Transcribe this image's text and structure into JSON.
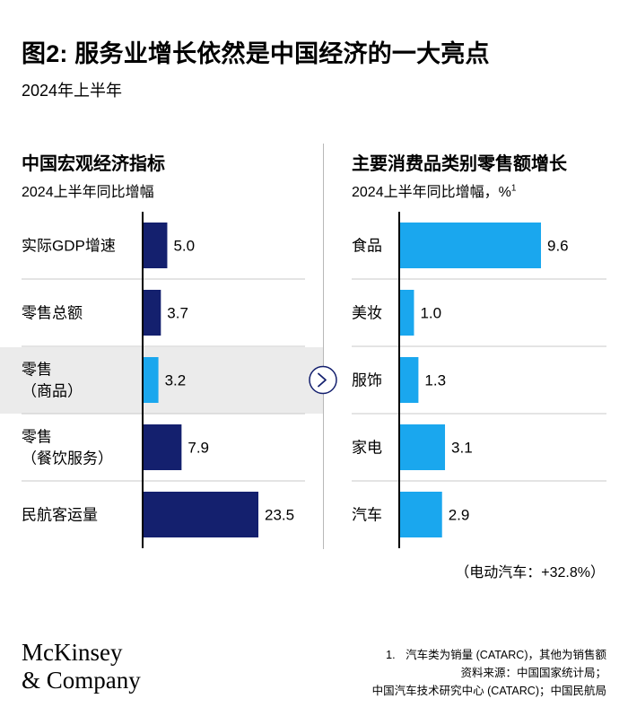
{
  "header": {
    "title": "图2: 服务业增长依然是中国经济的一大亮点",
    "subtitle": "2024年上半年"
  },
  "colors": {
    "navy": "#14206e",
    "light_blue": "#1aa7ee",
    "highlight_bg": "#ebebeb",
    "separator": "#c8c8c8"
  },
  "chart_data": [
    {
      "type": "bar",
      "orientation": "horizontal",
      "title": "中国宏观经济指标",
      "subtitle": "2024上半年同比增幅",
      "categories": [
        "实际GDP增速",
        "零售总额",
        "零售\n（商品）",
        "零售\n（餐饮服务）",
        "民航客运量"
      ],
      "values": [
        5.0,
        3.7,
        3.2,
        7.9,
        23.5
      ],
      "value_labels": [
        "5.0",
        "3.7",
        "3.2",
        "7.9",
        "23.5"
      ],
      "bar_colors": [
        "#14206e",
        "#14206e",
        "#1aa7ee",
        "#14206e",
        "#14206e"
      ],
      "highlighted_category": "零售\n（商品）",
      "xlim": [
        0,
        23.5
      ]
    },
    {
      "type": "bar",
      "orientation": "horizontal",
      "title": "主要消费品类别零售额增长",
      "subtitle": "2024上半年同比增幅，%",
      "subtitle_footnote": "1",
      "categories": [
        "食品",
        "美妆",
        "服饰",
        "家电",
        "汽车"
      ],
      "values": [
        9.6,
        1.0,
        1.3,
        3.1,
        2.9
      ],
      "value_labels": [
        "9.6",
        "1.0",
        "1.3",
        "3.1",
        "2.9"
      ],
      "bar_colors": [
        "#1aa7ee",
        "#1aa7ee",
        "#1aa7ee",
        "#1aa7ee",
        "#1aa7ee"
      ],
      "xlim": [
        0,
        9.6
      ],
      "annotation": "（电动汽车：+32.8%）"
    }
  ],
  "connector_icon": "chevron-right-icon",
  "logo": {
    "line1": "McKinsey",
    "line2": "& Company"
  },
  "footnotes": {
    "note1_number": "1.",
    "note1_text": "汽车类为销量 (CATARC)，其他为销售额",
    "source_line1": "资料来源：中国国家统计局；",
    "source_line2": "中国汽车技术研究中心 (CATARC)；中国民航局"
  }
}
